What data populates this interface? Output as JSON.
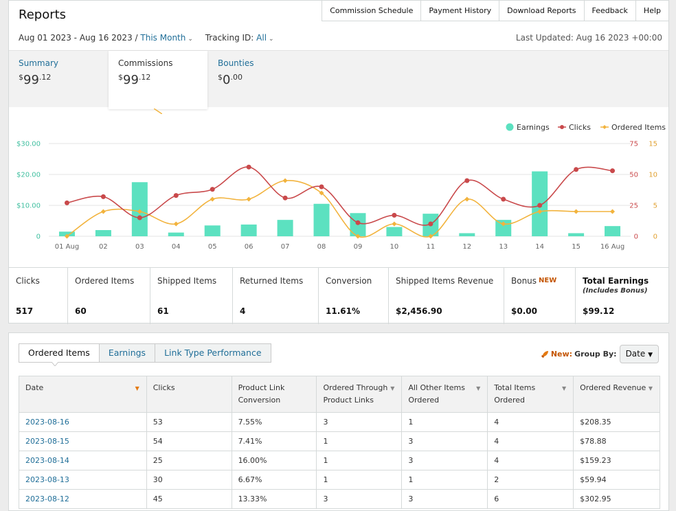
{
  "page": {
    "title": "Reports"
  },
  "top_nav": [
    "Commission Schedule",
    "Payment History",
    "Download Reports",
    "Feedback",
    "Help"
  ],
  "filters": {
    "date_range": "Aug 01 2023 - Aug 16 2023",
    "separator": "/",
    "period": "This Month",
    "tracking_label": "Tracking ID:",
    "tracking_value": "All"
  },
  "last_updated": "Last Updated: Aug 16 2023 +00:00",
  "summary_tabs": [
    {
      "label": "Summary",
      "currency": "$",
      "whole": "99",
      "cents": ".12"
    },
    {
      "label": "Commissions",
      "currency": "$",
      "whole": "99",
      "cents": ".12"
    },
    {
      "label": "Bounties",
      "currency": "$",
      "whole": "0",
      "cents": ".00"
    }
  ],
  "chart_data": {
    "type": "bar",
    "categories": [
      "01 Aug",
      "02",
      "03",
      "04",
      "05",
      "06",
      "07",
      "08",
      "09",
      "10",
      "11",
      "12",
      "13",
      "14",
      "15",
      "16 Aug"
    ],
    "series": [
      {
        "name": "Earnings",
        "type": "bar",
        "axis": "left",
        "color": "#5ce1c0",
        "values": [
          1.5,
          2,
          17.5,
          1.2,
          3.5,
          3.8,
          5.3,
          10.5,
          7.5,
          3,
          7.3,
          1,
          5.3,
          21,
          1,
          3.3
        ]
      },
      {
        "name": "Clicks",
        "type": "line",
        "axis": "right-outer",
        "color": "#c9494b",
        "values": [
          27,
          32,
          15,
          33,
          38,
          56,
          31,
          40,
          11,
          17,
          10,
          45,
          30,
          25,
          54,
          53
        ]
      },
      {
        "name": "Ordered Items",
        "type": "line",
        "axis": "right-inner",
        "color": "#f2b33d",
        "values": [
          0,
          4,
          4,
          2,
          6,
          6,
          9,
          7,
          0,
          2,
          0,
          6,
          2,
          4,
          4,
          4
        ]
      }
    ],
    "left_axis": {
      "ticks": [
        "$30.00",
        "$20.00",
        "$10.00",
        "0"
      ],
      "range": [
        0,
        30
      ]
    },
    "right_outer_axis": {
      "ticks": [
        "75",
        "50",
        "25",
        "0"
      ],
      "range": [
        0,
        75
      ]
    },
    "right_inner_axis": {
      "ticks": [
        "15",
        "10",
        "5",
        "0"
      ],
      "range": [
        0,
        15
      ]
    },
    "legend_position": "top-right"
  },
  "stats": [
    {
      "label": "Clicks",
      "value": "517"
    },
    {
      "label": "Ordered Items",
      "value": "60"
    },
    {
      "label": "Shipped Items",
      "value": "61"
    },
    {
      "label": "Returned Items",
      "value": "4"
    },
    {
      "label": "Conversion",
      "value": "11.61%"
    },
    {
      "label": "Shipped Items Revenue",
      "value": "$2,456.90"
    },
    {
      "label": "Bonus",
      "tag": "NEW",
      "value": "$0.00"
    },
    {
      "label": "Total Earnings",
      "sub": "(Includes Bonus)",
      "value": "$99.12"
    }
  ],
  "report_tabs": [
    "Ordered Items",
    "Earnings",
    "Link Type Performance"
  ],
  "group_by": {
    "new_label": "New:",
    "label": "Group By:",
    "value": "Date"
  },
  "table": {
    "headers": [
      "Date",
      "Clicks",
      [
        "Product Link",
        "Conversion"
      ],
      [
        "Ordered Through",
        "Product Links"
      ],
      [
        "All Other Items",
        "Ordered"
      ],
      [
        "Total Items",
        "Ordered"
      ],
      "Ordered Revenue"
    ],
    "rows": [
      [
        "2023-08-16",
        "53",
        "7.55%",
        "3",
        "1",
        "4",
        "$208.35"
      ],
      [
        "2023-08-15",
        "54",
        "7.41%",
        "1",
        "3",
        "4",
        "$78.88"
      ],
      [
        "2023-08-14",
        "25",
        "16.00%",
        "1",
        "3",
        "4",
        "$159.23"
      ],
      [
        "2023-08-13",
        "30",
        "6.67%",
        "1",
        "1",
        "2",
        "$59.94"
      ],
      [
        "2023-08-12",
        "45",
        "13.33%",
        "3",
        "3",
        "6",
        "$302.95"
      ]
    ]
  },
  "colors": {
    "link": "#1f6e98",
    "accent_orange": "#e47911",
    "new_tag": "#c45500"
  }
}
